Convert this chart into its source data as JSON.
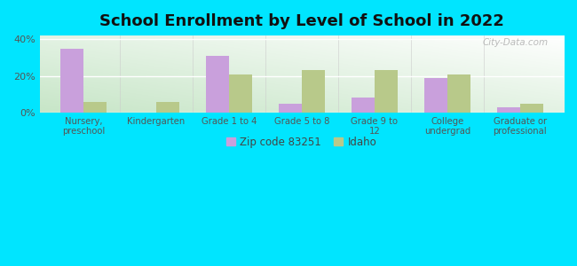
{
  "title": "School Enrollment by Level of School in 2022",
  "categories": [
    "Nursery,\npreschool",
    "Kindergarten",
    "Grade 1 to 4",
    "Grade 5 to 8",
    "Grade 9 to\n12",
    "College\nundergrad",
    "Graduate or\nprofessional"
  ],
  "zip_values": [
    35,
    0,
    31,
    5,
    8,
    19,
    3
  ],
  "idaho_values": [
    6,
    6,
    21,
    23,
    23,
    21,
    5
  ],
  "zip_color": "#c9a0dc",
  "idaho_color": "#b8c98a",
  "background_outer": "#00e5ff",
  "title_fontsize": 13,
  "ylim": [
    0,
    42
  ],
  "legend_labels": [
    "Zip code 83251",
    "Idaho"
  ],
  "watermark": "City-Data.com"
}
